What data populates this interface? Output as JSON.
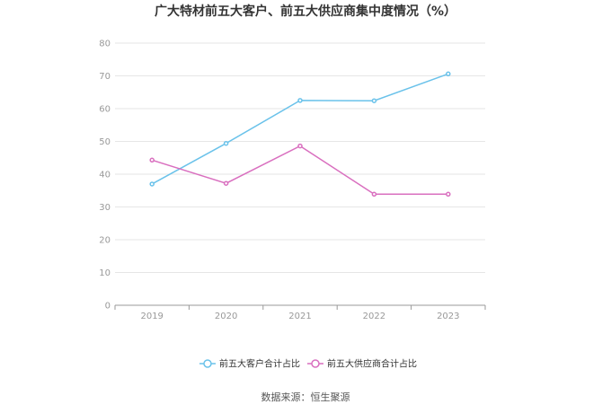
{
  "chart_data": {
    "type": "line",
    "title": "广大特材前五大客户、前五大供应商集中度情况（%）",
    "categories": [
      "2019",
      "2020",
      "2021",
      "2022",
      "2023"
    ],
    "ylim": [
      0,
      80
    ],
    "yticks": [
      0,
      10,
      20,
      30,
      40,
      50,
      60,
      70,
      80
    ],
    "grid": true,
    "legend_position": "bottom",
    "series": [
      {
        "name": "前五大客户合计占比",
        "color": "#6ac2ea",
        "values": [
          37.0,
          49.4,
          62.5,
          62.4,
          70.6
        ]
      },
      {
        "name": "前五大供应商合计占比",
        "color": "#d96fbf",
        "values": [
          44.3,
          37.2,
          48.6,
          33.9,
          33.9
        ]
      }
    ],
    "source": "数据来源：恒生聚源"
  }
}
